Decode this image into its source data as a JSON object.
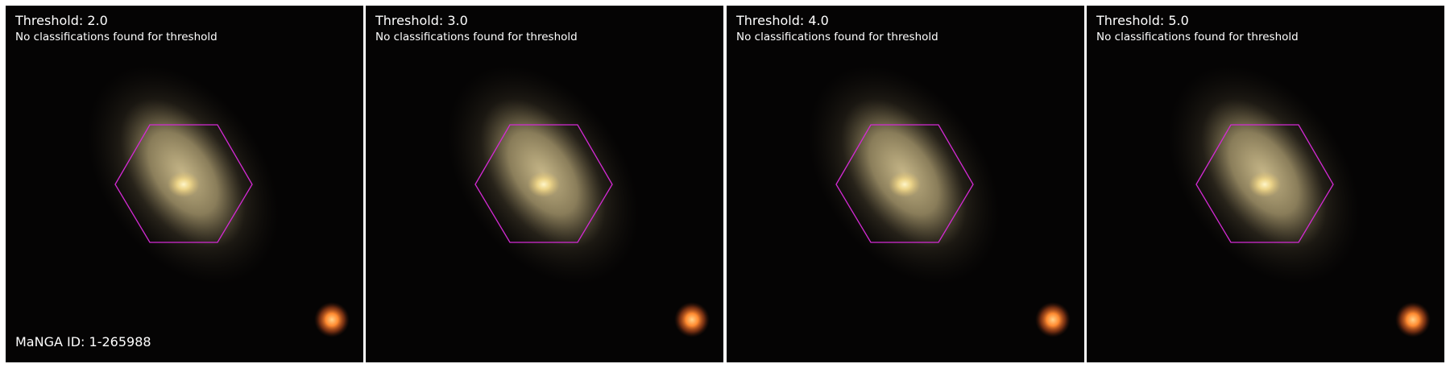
{
  "panels": [
    {
      "title": "Threshold: 2.0",
      "message": "No classifications found for threshold"
    },
    {
      "title": "Threshold: 3.0",
      "message": "No classifications found for threshold"
    },
    {
      "title": "Threshold: 4.0",
      "message": "No classifications found for threshold"
    },
    {
      "title": "Threshold: 5.0",
      "message": "No classifications found for threshold"
    }
  ],
  "manga_id": "MaNGA ID: 1-265988",
  "colors": {
    "ifu_outline": "#d42ad4",
    "sky_background": "#050404",
    "galaxy_core": "#fff0b0",
    "galaxy_disk": "#a8986c",
    "star": "#ff8a30",
    "text": "#ffffff"
  }
}
